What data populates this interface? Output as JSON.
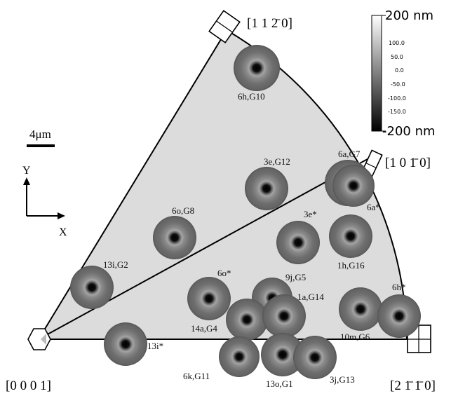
{
  "directions": {
    "top": "[1 1 2̄ 0]",
    "right": "[1 0 1̄ 0]",
    "bottom_left": "[0 0 0 1]",
    "bottom_right": "[2 1̄ 1̄ 0]"
  },
  "colorbar": {
    "max_label": "200 nm",
    "min_label": "-200 nm",
    "ticks": [
      "100.0",
      "50.0",
      "0.0",
      "-50.0",
      "-100.0",
      "-150.0"
    ]
  },
  "scale_bar": {
    "label": "4μm"
  },
  "axes": {
    "y": "Y",
    "x": "X"
  },
  "grain_labels": {
    "g_6h_G10": "6h,G10",
    "g_3e_G12": "3e,G12",
    "g_6a_G7": "6a,G7",
    "g_6a_star": "6a*",
    "g_3e_star": "3e*",
    "g_6o_G8": "6o,G8",
    "g_1h_G16": "1h,G16",
    "g_13i_G2": "13i,G2",
    "g_6o_star": "6o*",
    "g_9j_G5": "9j,G5",
    "g_1a_G14": "1a,G14",
    "g_6h_star": "6h*",
    "g_14a_G4": "14a,G4",
    "g_10m_G6": "10m,G6",
    "g_13i_star": "13i*",
    "g_6k_G11": "6k,G11",
    "g_13o_G1": "13o,G1",
    "g_3j_G13": "3j,G13"
  }
}
